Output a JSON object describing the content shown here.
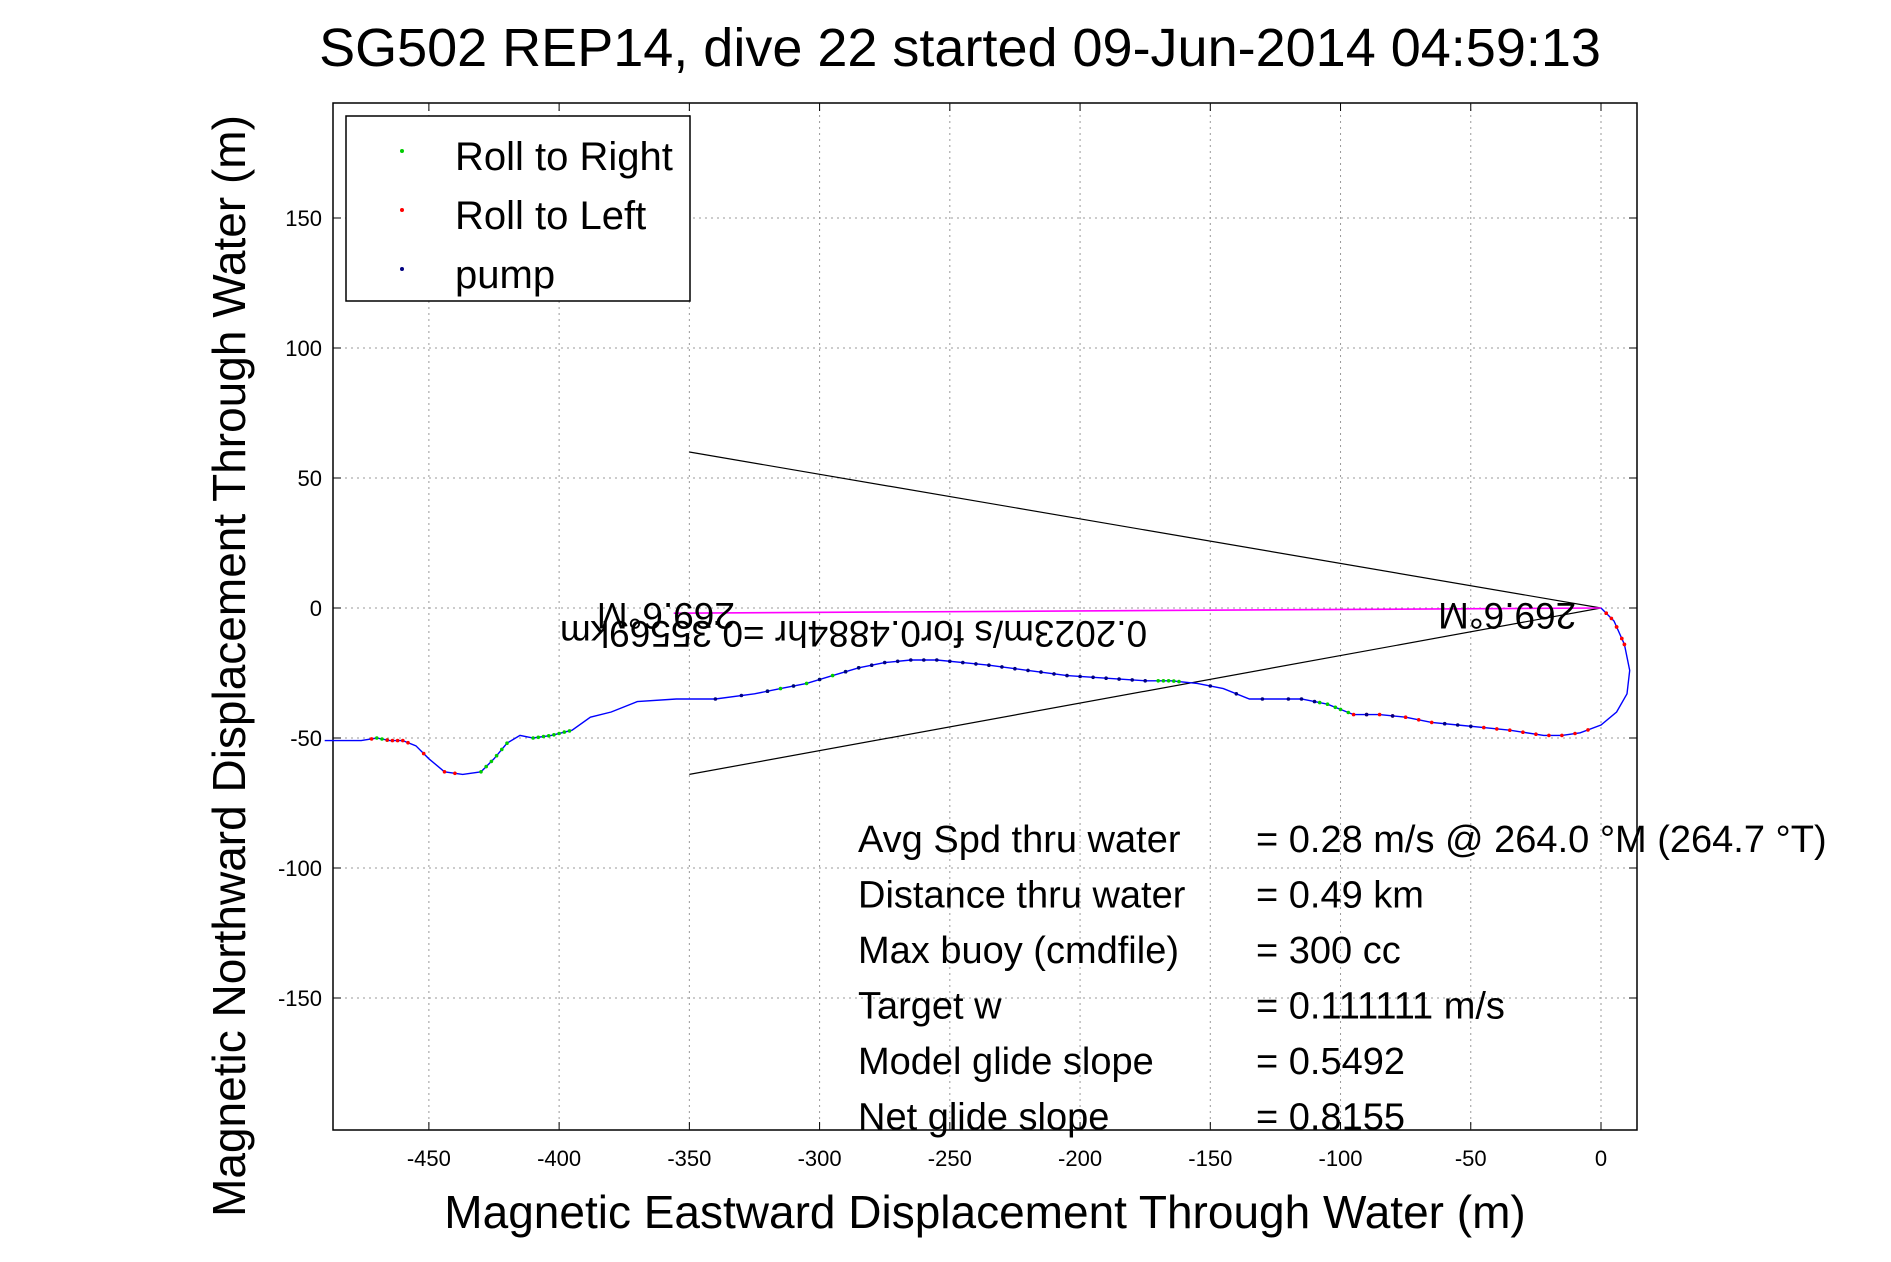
{
  "chart_data": {
    "type": "line",
    "title": "SG502 REP14, dive 22 started 09-Jun-2014 04:59:13",
    "xlabel": "Magnetic Eastward Displacement Through Water (m)",
    "ylabel": "Magnetic Northward Displacement Through Water (m)",
    "xlim": [
      -490,
      10
    ],
    "ylim": [
      -200,
      195
    ],
    "xticks": [
      -450,
      -400,
      -350,
      -300,
      -250,
      -200,
      -150,
      -100,
      -50,
      0
    ],
    "yticks": [
      150,
      100,
      50,
      0,
      -50,
      -100,
      -150
    ],
    "grid": true,
    "legend_position": "top-left",
    "legend": [
      {
        "label": "Roll to Right",
        "color": "#00cc00"
      },
      {
        "label": "Roll to Left",
        "color": "#ff0000"
      },
      {
        "label": "pump",
        "color": "#000080"
      }
    ],
    "track": {
      "color": "#0000ff",
      "x": [
        0,
        5,
        9,
        11,
        10,
        6,
        0,
        -8,
        -15,
        -22,
        -35,
        -45,
        -55,
        -65,
        -75,
        -85,
        -95,
        -105,
        -115,
        -125,
        -135,
        -145,
        -155,
        -165,
        -175,
        -190,
        -205,
        -220,
        -235,
        -245,
        -255,
        -265,
        -275,
        -285,
        -295,
        -305,
        -315,
        -325,
        -340,
        -355,
        -370,
        -380,
        -388,
        -395,
        -403,
        -410,
        -415,
        -420,
        -425,
        -430,
        -437,
        -444,
        -450,
        -455,
        -460,
        -465,
        -470,
        -476,
        -490
      ],
      "y": [
        0,
        -5,
        -14,
        -24,
        -33,
        -40,
        -45,
        -48,
        -49,
        -49,
        -47,
        -46,
        -45,
        -44,
        -42,
        -41,
        -41,
        -37,
        -35,
        -35,
        -35,
        -31,
        -29,
        -28,
        -28,
        -27,
        -26,
        -24,
        -22,
        -21,
        -20,
        -20,
        -21,
        -23,
        -26,
        -29,
        -31,
        -33,
        -35,
        -35,
        -36,
        -40,
        -42,
        -47,
        -49,
        -50,
        -49,
        -52,
        -58,
        -63,
        -64,
        -63,
        -58,
        -53,
        -51,
        -51,
        -50,
        -51,
        -51
      ]
    },
    "roll_right_x": [
      -470,
      -468,
      -466,
      -430,
      -428,
      -426,
      -424,
      -422,
      -420,
      -410,
      -408,
      -406,
      -404,
      -402,
      -400,
      -398,
      -396,
      -320,
      -315,
      -310,
      -305,
      -300,
      -295,
      -290,
      -285,
      -170,
      -168,
      -166,
      -164,
      -162,
      -108,
      -105,
      -102,
      -100,
      -97
    ],
    "roll_left_x": [
      -472,
      -466,
      -464,
      -462,
      -460,
      -458,
      -452,
      -444,
      -440,
      -95,
      -90,
      -85,
      -80,
      -75,
      -70,
      -65,
      -45,
      -40,
      -35,
      -30,
      -25,
      -20,
      -15,
      -10,
      -5,
      2,
      6,
      8,
      9,
      9,
      8,
      6,
      4,
      2
    ],
    "pump_x": [
      -340,
      -330,
      -320,
      -310,
      -300,
      -290,
      -285,
      -280,
      -275,
      -270,
      -265,
      -260,
      -255,
      -250,
      -245,
      -240,
      -235,
      -230,
      -225,
      -220,
      -215,
      -210,
      -205,
      -200,
      -195,
      -190,
      -185,
      -180,
      -175,
      -150,
      -140,
      -130,
      -120,
      -115,
      -110,
      -90,
      -80,
      -60,
      -55,
      -50
    ],
    "lines": [
      {
        "from": [
          0,
          0
        ],
        "to": [
          -350,
          60
        ],
        "color": "#000000"
      },
      {
        "from": [
          0,
          0
        ],
        "to": [
          -350,
          -64
        ],
        "color": "#000000"
      },
      {
        "from": [
          0,
          0
        ],
        "to": [
          -356,
          -2
        ],
        "color": "#ff00ff"
      }
    ],
    "annotations": [
      {
        "text": "269.6°M",
        "x": -359,
        "y": 2,
        "rotated": true
      },
      {
        "text": "269.6°M",
        "x": -36,
        "y": 2,
        "rotated": true
      },
      {
        "text": "0.2023m/s for0.4884hr =0.35569km",
        "x": -287,
        "y": -5,
        "rotated": true
      }
    ],
    "info": [
      {
        "label": "Avg Spd thru water",
        "value": "=  0.28 m/s @ 264.0 °M (264.7 °T)"
      },
      {
        "label": "Distance thru water",
        "value": "=  0.49 km"
      },
      {
        "label": "Max buoy (cmdfile)",
        "value": "= 300 cc"
      },
      {
        "label": "Target w",
        "value": "= 0.111111 m/s"
      },
      {
        "label": "Model glide slope",
        "value": "= 0.5492"
      },
      {
        "label": "Net glide slope",
        "value": "= 0.8155"
      }
    ]
  }
}
